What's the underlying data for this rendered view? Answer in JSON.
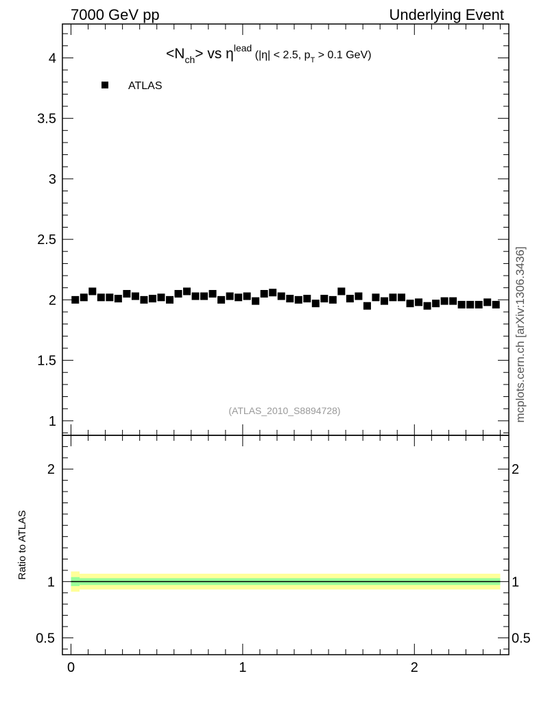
{
  "header": {
    "left": "7000 GeV pp",
    "right": "Underlying Event"
  },
  "side_label": "mcplots.cern.ch [arXiv:1306.3436]",
  "chart_data": [
    {
      "type": "scatter",
      "title_parts": {
        "open": "<N",
        "sub": "ch",
        "mid": "> vs η",
        "sup": "lead",
        "cut_pre": " (|η| < 2.5, p",
        "cut_sub": "T",
        "cut_post": " > 0.1 GeV)"
      },
      "legend": {
        "label": "ATLAS",
        "placement": "top-left"
      },
      "watermark": "(ATLAS_2010_S8894728)",
      "xlim": [
        -0.05,
        2.55
      ],
      "ylim": [
        0.88,
        4.28
      ],
      "y_ticks": [
        1,
        1.5,
        2,
        2.5,
        3,
        3.5,
        4
      ],
      "y_tick_labels": [
        "1",
        "1.5",
        "2",
        "2.5",
        "3",
        "3.5",
        "4"
      ],
      "series": [
        {
          "name": "ATLAS",
          "color": "#000000",
          "x": [
            0.025,
            0.075,
            0.125,
            0.175,
            0.225,
            0.275,
            0.325,
            0.375,
            0.425,
            0.475,
            0.525,
            0.575,
            0.625,
            0.675,
            0.725,
            0.775,
            0.825,
            0.875,
            0.925,
            0.975,
            1.025,
            1.075,
            1.125,
            1.175,
            1.225,
            1.275,
            1.325,
            1.375,
            1.425,
            1.475,
            1.525,
            1.575,
            1.625,
            1.675,
            1.725,
            1.775,
            1.825,
            1.875,
            1.925,
            1.975,
            2.025,
            2.075,
            2.125,
            2.175,
            2.225,
            2.275,
            2.325,
            2.375,
            2.425,
            2.475
          ],
          "y": [
            2.0,
            2.02,
            2.07,
            2.02,
            2.02,
            2.01,
            2.05,
            2.03,
            2.0,
            2.01,
            2.02,
            2.0,
            2.05,
            2.07,
            2.03,
            2.03,
            2.05,
            2.0,
            2.03,
            2.02,
            2.03,
            1.99,
            2.05,
            2.06,
            2.03,
            2.01,
            2.0,
            2.01,
            1.97,
            2.01,
            2.0,
            2.07,
            2.01,
            2.03,
            1.95,
            2.02,
            1.99,
            2.02,
            2.02,
            1.97,
            1.98,
            1.95,
            1.97,
            1.99,
            1.99,
            1.96,
            1.96,
            1.96,
            1.98,
            1.96
          ]
        }
      ]
    },
    {
      "type": "area",
      "ylabel": "Ratio to ATLAS",
      "xlim": [
        -0.05,
        2.55
      ],
      "ylim": [
        0.35,
        2.3
      ],
      "y_ticks": [
        0.5,
        1,
        2
      ],
      "y_tick_labels": [
        "0.5",
        "1",
        "2"
      ],
      "x_ticks": [
        0,
        1,
        2
      ],
      "x_tick_labels": [
        "0",
        "1",
        "2"
      ],
      "reference_line": 1,
      "bands": [
        {
          "kind": "total uncertainty",
          "color": "#ffff99",
          "x": [
            0.0,
            0.05,
            2.5
          ],
          "half_width": [
            0.09,
            0.07,
            0.07
          ]
        },
        {
          "kind": "statistical uncertainty",
          "color": "#99ff99",
          "x": [
            0.0,
            0.05,
            2.5
          ],
          "half_width": [
            0.04,
            0.03,
            0.03
          ]
        }
      ]
    }
  ]
}
